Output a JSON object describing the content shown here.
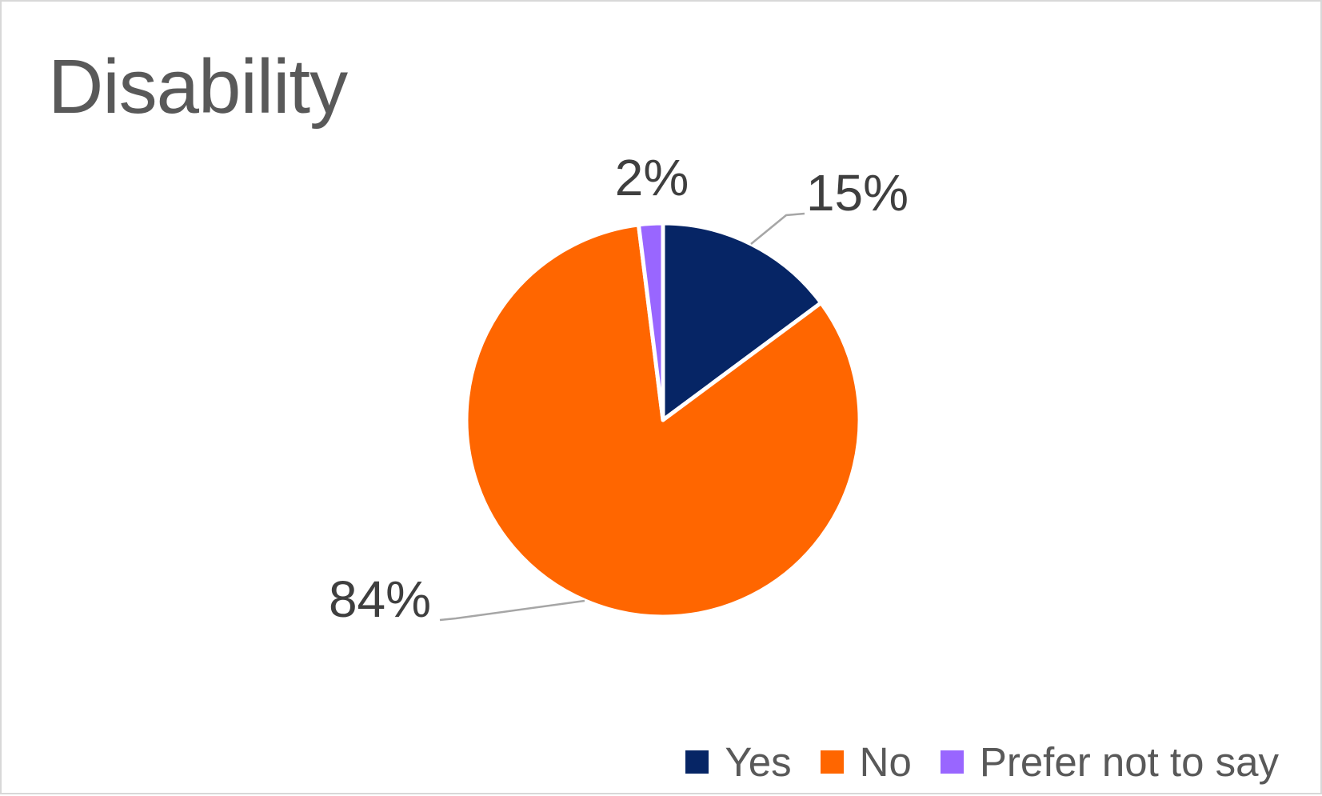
{
  "window": {
    "background_color": "#FFFFFF",
    "frame_border_color": "#D8D8D8"
  },
  "chart_data": {
    "type": "pie",
    "title": "Disability",
    "labels": [
      "Yes",
      "No",
      "Prefer not to say"
    ],
    "values": [
      15,
      84,
      2
    ],
    "value_unit": "percent",
    "data_labels": [
      "15%",
      "84%",
      "2%"
    ],
    "colors": [
      "#062565",
      "#FF6600",
      "#9966FF"
    ],
    "start_angle": "top",
    "direction": "clockwise",
    "slice_separator_color": "#FFFFFF",
    "leader_line_color": "#A6A6A6",
    "data_label_color": "#3F3F3F",
    "title_color": "#595959",
    "legend": {
      "position": "bottom-right",
      "text_color": "#595959",
      "items": [
        "Yes",
        "No",
        "Prefer not to say"
      ]
    }
  }
}
